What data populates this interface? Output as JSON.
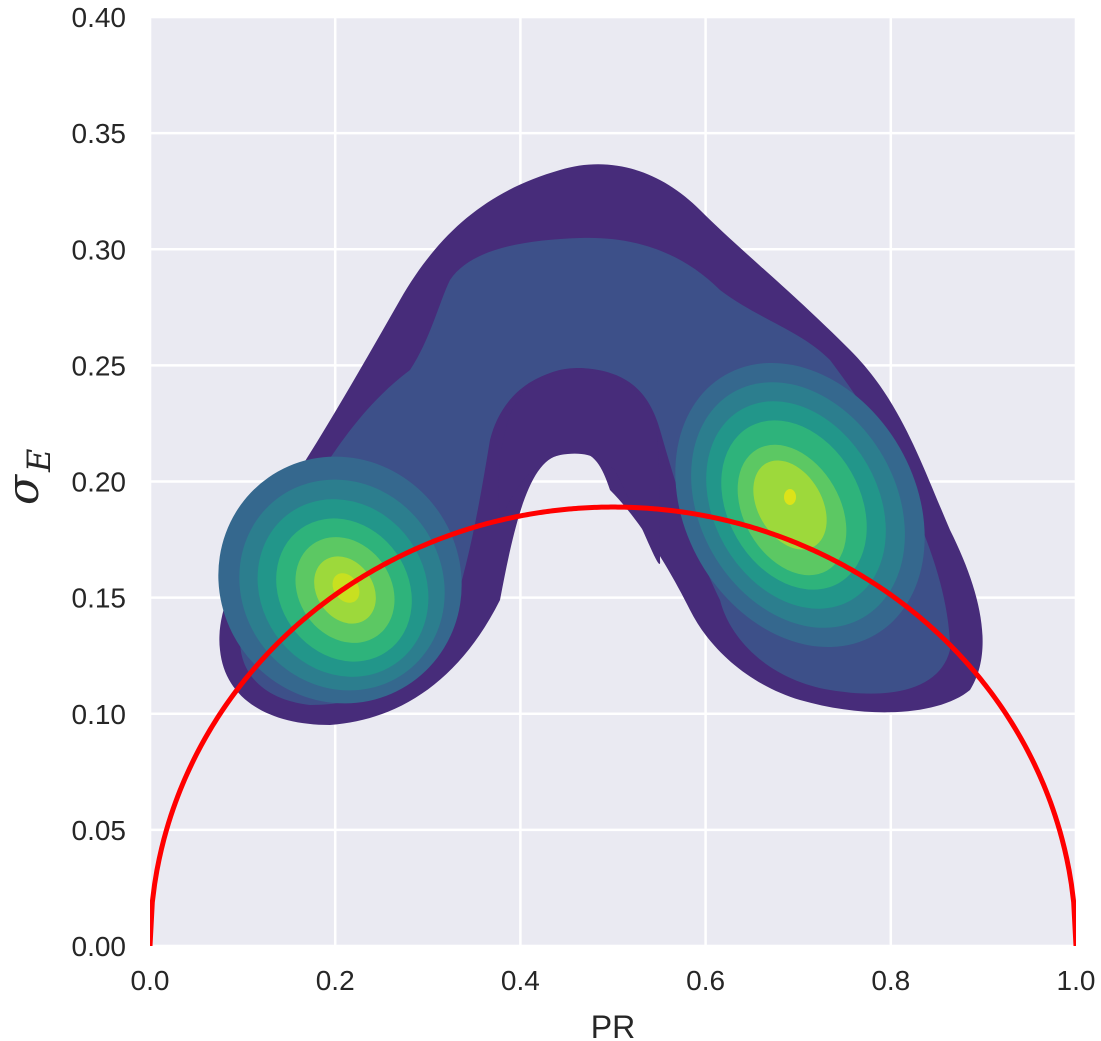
{
  "chart_data": {
    "type": "density_contour",
    "title": "",
    "xlabel": "PR",
    "ylabel": "σ_E",
    "ylabel_symbol": "σ",
    "ylabel_subscript": "E",
    "xlim": [
      0.0,
      1.0
    ],
    "ylim": [
      0.0,
      0.4
    ],
    "xticks": [
      0.0,
      0.2,
      0.4,
      0.6,
      0.8,
      1.0
    ],
    "xtick_labels": [
      "0.0",
      "0.2",
      "0.4",
      "0.6",
      "0.8",
      "1.0"
    ],
    "yticks": [
      0.0,
      0.05,
      0.1,
      0.15,
      0.2,
      0.25,
      0.3,
      0.35,
      0.4
    ],
    "ytick_labels": [
      "0.00",
      "0.05",
      "0.10",
      "0.15",
      "0.20",
      "0.25",
      "0.30",
      "0.35",
      "0.40"
    ],
    "grid": true,
    "background_color": "#eaeaf2",
    "grid_color": "#ffffff",
    "colormap": "viridis",
    "density_levels": 8,
    "density_peaks": [
      {
        "x": 0.21,
        "y": 0.153
      },
      {
        "x": 0.69,
        "y": 0.192
      }
    ],
    "curve": {
      "type": "line",
      "color": "#ff0000",
      "formula": "sqrt(x*(1-x))*0.378",
      "peak": {
        "x": 0.5,
        "y": 0.189
      },
      "x_range": [
        0.0,
        1.0
      ]
    }
  }
}
